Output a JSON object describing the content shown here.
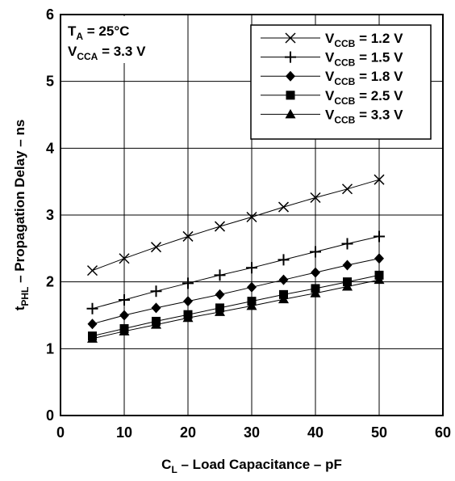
{
  "chart_data": {
    "type": "line",
    "x_axis": {
      "label_main": "C",
      "label_sub": "L",
      "label_rest": " – Load Capacitance – pF",
      "range": [
        0,
        60
      ],
      "ticks": [
        "0",
        "10",
        "20",
        "30",
        "40",
        "50",
        "60"
      ]
    },
    "y_axis": {
      "label_main": "t",
      "label_sub": "PHL",
      "label_rest": " – Propagation Delay – ns",
      "range": [
        0,
        6
      ],
      "ticks": [
        "0",
        "1",
        "2",
        "3",
        "4",
        "5",
        "6"
      ]
    },
    "grid": true,
    "legend_position": "top-right",
    "annotations": {
      "line1_main": "T",
      "line1_sub": "A",
      "line1_rest": " = 25°C",
      "line2_main": "V",
      "line2_sub": "CCA",
      "line2_rest": " = 3.3 V"
    },
    "x": [
      5,
      10,
      15,
      20,
      25,
      30,
      35,
      40,
      45,
      50
    ],
    "series": [
      {
        "name_main": "V",
        "name_sub": "CCB",
        "name_rest": " = 1.2 V",
        "marker": "x",
        "values": [
          2.17,
          2.35,
          2.52,
          2.68,
          2.83,
          2.97,
          3.12,
          3.26,
          3.39,
          3.53
        ]
      },
      {
        "name_main": "V",
        "name_sub": "CCB",
        "name_rest": " = 1.5 V",
        "marker": "plus",
        "values": [
          1.6,
          1.73,
          1.86,
          1.98,
          2.1,
          2.21,
          2.33,
          2.45,
          2.57,
          2.68
        ]
      },
      {
        "name_main": "V",
        "name_sub": "CCB",
        "name_rest": " = 1.8 V",
        "marker": "diamond",
        "values": [
          1.37,
          1.5,
          1.61,
          1.71,
          1.81,
          1.92,
          2.03,
          2.14,
          2.25,
          2.35
        ]
      },
      {
        "name_main": "V",
        "name_sub": "CCB",
        "name_rest": " = 2.5 V",
        "marker": "square",
        "values": [
          1.19,
          1.3,
          1.41,
          1.51,
          1.61,
          1.71,
          1.81,
          1.9,
          2.0,
          2.1
        ]
      },
      {
        "name_main": "V",
        "name_sub": "CCB",
        "name_rest": " = 3.3 V",
        "marker": "triangle",
        "values": [
          1.15,
          1.26,
          1.36,
          1.46,
          1.55,
          1.64,
          1.74,
          1.83,
          1.93,
          2.03
        ]
      }
    ]
  }
}
